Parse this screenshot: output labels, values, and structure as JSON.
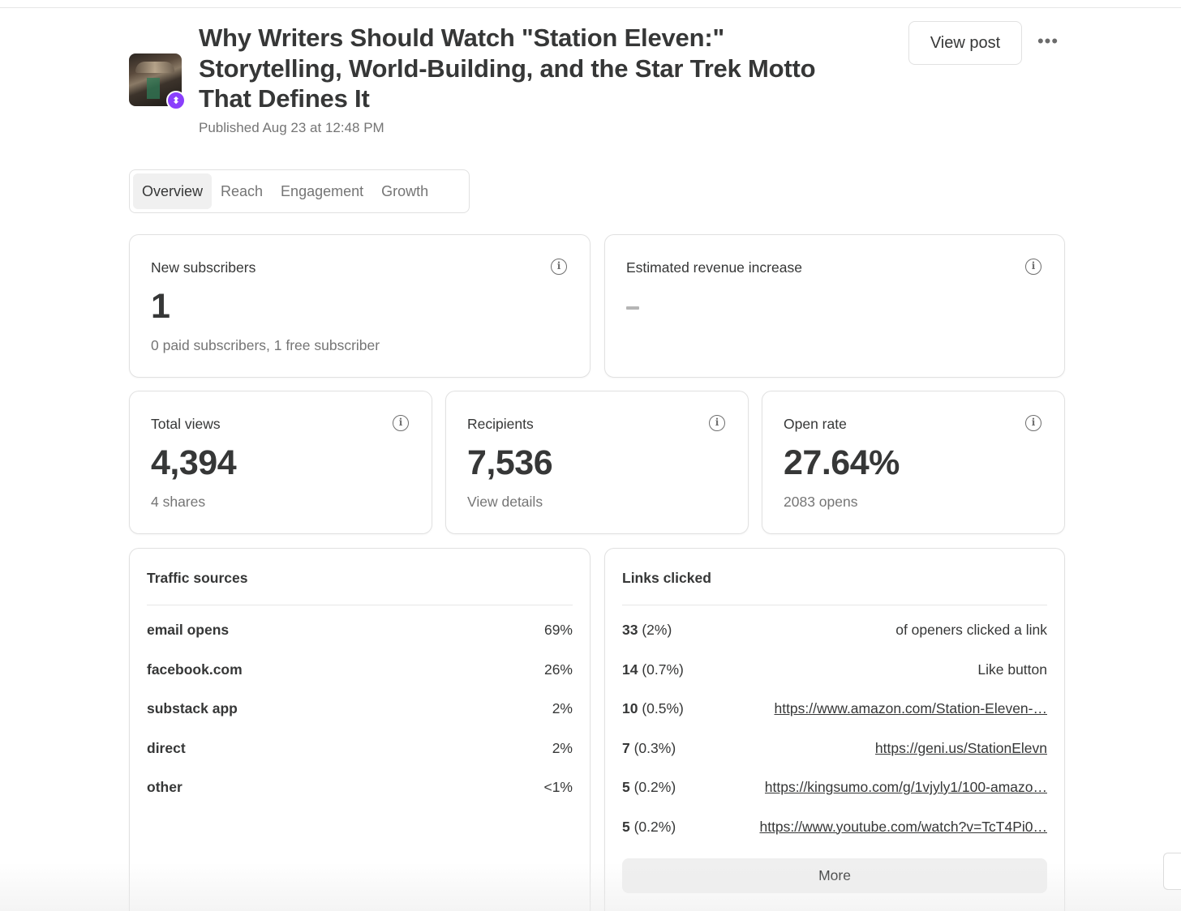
{
  "post": {
    "title": "Why Writers Should Watch \"Station Eleven:\" Storytelling, World-Building, and the Star Trek Motto That Defines It",
    "published": "Published Aug 23 at 12:48 PM",
    "view_post_label": "View post",
    "more_icon": "•••"
  },
  "tabs": [
    {
      "label": "Overview",
      "active": true
    },
    {
      "label": "Reach",
      "active": false
    },
    {
      "label": "Engagement",
      "active": false
    },
    {
      "label": "Growth",
      "active": false
    }
  ],
  "stats": {
    "new_subscribers": {
      "label": "New subscribers",
      "value": "1",
      "sub": "0 paid subscribers, 1 free subscriber"
    },
    "revenue": {
      "label": "Estimated revenue increase"
    },
    "total_views": {
      "label": "Total views",
      "value": "4,394",
      "sub": "4 shares"
    },
    "recipients": {
      "label": "Recipients",
      "value": "7,536",
      "sub": "View details"
    },
    "open_rate": {
      "label": "Open rate",
      "value": "27.64%",
      "sub": "2083 opens"
    }
  },
  "info_glyph": "i",
  "traffic": {
    "title": "Traffic sources",
    "rows": [
      {
        "source": "email opens",
        "pct": "69%"
      },
      {
        "source": "facebook.com",
        "pct": "26%"
      },
      {
        "source": "substack app",
        "pct": "2%"
      },
      {
        "source": "direct",
        "pct": "2%"
      },
      {
        "source": "other",
        "pct": "<1%"
      }
    ]
  },
  "links": {
    "title": "Links clicked",
    "rows": [
      {
        "count": "33",
        "pct": "(2%)",
        "target": "of openers clicked a link",
        "is_link": false
      },
      {
        "count": "14",
        "pct": "(0.7%)",
        "target": "Like button",
        "is_link": false
      },
      {
        "count": "10",
        "pct": "(0.5%)",
        "target": "https://www.amazon.com/Station-Eleven-…",
        "is_link": true
      },
      {
        "count": "7",
        "pct": "(0.3%)",
        "target": "https://geni.us/StationElevn",
        "is_link": true
      },
      {
        "count": "5",
        "pct": "(0.2%)",
        "target": "https://kingsumo.com/g/1vjyly1/100-amazo…",
        "is_link": true
      },
      {
        "count": "5",
        "pct": "(0.2%)",
        "target": "https://www.youtube.com/watch?v=TcT4Pi0…",
        "is_link": true
      }
    ],
    "more_label": "More"
  },
  "colors": {
    "accent_pin": "#8a3ffc",
    "text": "#363737",
    "muted": "#757575",
    "border": "#e1e1e1"
  }
}
